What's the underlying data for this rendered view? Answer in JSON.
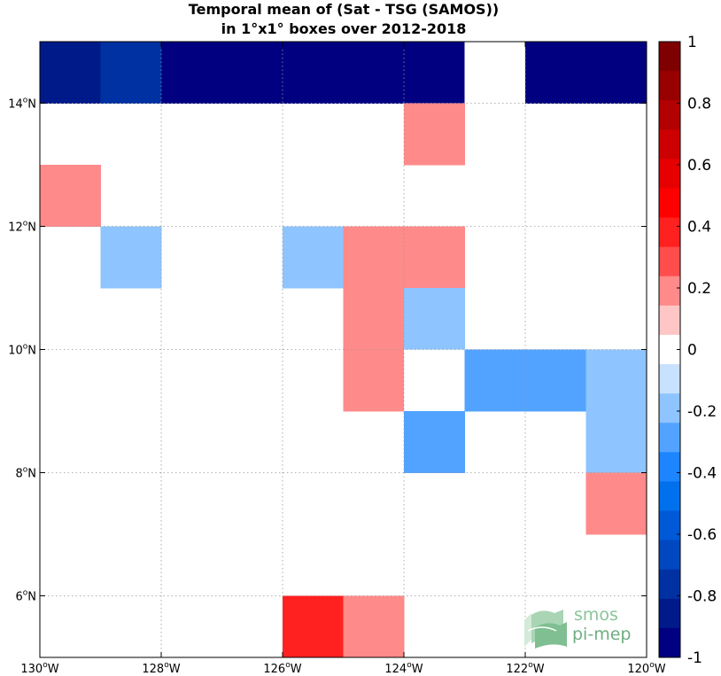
{
  "chart_data": {
    "type": "heatmap",
    "title": [
      "Temporal mean of (Sat - TSG (SAMOS))",
      "in 1°x1° boxes over 2012-2018"
    ],
    "xlabel": "",
    "ylabel": "",
    "xlim": [
      -130,
      -120
    ],
    "ylim": [
      5,
      15
    ],
    "grid": true,
    "x_ticks": [
      -130,
      -128,
      -126,
      -124,
      -122,
      -120
    ],
    "x_tick_labels": [
      {
        "deg": "130",
        "hem": "W"
      },
      {
        "deg": "128",
        "hem": "W"
      },
      {
        "deg": "126",
        "hem": "W"
      },
      {
        "deg": "124",
        "hem": "W"
      },
      {
        "deg": "122",
        "hem": "W"
      },
      {
        "deg": "120",
        "hem": "W"
      }
    ],
    "y_ticks": [
      6,
      8,
      10,
      12,
      14
    ],
    "y_tick_labels": [
      {
        "deg": "6",
        "hem": "N"
      },
      {
        "deg": "8",
        "hem": "N"
      },
      {
        "deg": "10",
        "hem": "N"
      },
      {
        "deg": "12",
        "hem": "N"
      },
      {
        "deg": "14",
        "hem": "N"
      }
    ],
    "cells": [
      {
        "lon": -130,
        "lat": 14,
        "value": -0.85
      },
      {
        "lon": -129,
        "lat": 14,
        "value": -0.75
      },
      {
        "lon": -128,
        "lat": 14,
        "value": -0.98
      },
      {
        "lon": -127,
        "lat": 14,
        "value": -0.98
      },
      {
        "lon": -126,
        "lat": 14,
        "value": -0.98
      },
      {
        "lon": -125,
        "lat": 14,
        "value": -0.98
      },
      {
        "lon": -124,
        "lat": 14,
        "value": -0.98
      },
      {
        "lon": -123,
        "lat": 14,
        "value": 0.0
      },
      {
        "lon": -122,
        "lat": 14,
        "value": -0.98
      },
      {
        "lon": -121,
        "lat": 14,
        "value": -0.98
      },
      {
        "lon": -124,
        "lat": 13,
        "value": 0.15
      },
      {
        "lon": -130,
        "lat": 12,
        "value": 0.15
      },
      {
        "lon": -129,
        "lat": 11,
        "value": -0.15
      },
      {
        "lon": -126,
        "lat": 11,
        "value": -0.15
      },
      {
        "lon": -125,
        "lat": 11,
        "value": 0.15
      },
      {
        "lon": -124,
        "lat": 11,
        "value": 0.15
      },
      {
        "lon": -125,
        "lat": 10,
        "value": 0.15
      },
      {
        "lon": -124,
        "lat": 10,
        "value": -0.15
      },
      {
        "lon": -125,
        "lat": 9,
        "value": 0.15
      },
      {
        "lon": -124,
        "lat": 9,
        "value": 0.0
      },
      {
        "lon": -123,
        "lat": 9,
        "value": -0.25
      },
      {
        "lon": -122,
        "lat": 9,
        "value": -0.25
      },
      {
        "lon": -121,
        "lat": 9,
        "value": -0.15
      },
      {
        "lon": -124,
        "lat": 8,
        "value": -0.25
      },
      {
        "lon": -121,
        "lat": 8,
        "value": -0.15
      },
      {
        "lon": -121,
        "lat": 7,
        "value": 0.15
      },
      {
        "lon": -126,
        "lat": 5,
        "value": 0.35
      },
      {
        "lon": -125,
        "lat": 5,
        "value": 0.15
      }
    ],
    "colorbar": {
      "range": [
        -1,
        1
      ],
      "ticks": [
        1,
        0.8,
        0.6,
        0.4,
        0.2,
        0,
        -0.2,
        -0.4,
        -0.6,
        -0.8,
        -1
      ],
      "tick_labels": [
        "1",
        "0.8",
        "0.6",
        "0.4",
        "0.2",
        "0",
        "-0.2",
        "-0.4",
        "-0.6",
        "-0.8",
        "-1"
      ],
      "colors_top_to_bottom": [
        "#7f0000",
        "#990000",
        "#b30000",
        "#cc0000",
        "#e60000",
        "#ff0000",
        "#ff2020",
        "#ff4d4d",
        "#ff8a8a",
        "#ffc6c6",
        "#ffffff",
        "#c7e1ff",
        "#8ec4ff",
        "#52a3ff",
        "#1c85ff",
        "#0070ec",
        "#0059d6",
        "#0047c0",
        "#0031a2",
        "#001a8a",
        "#000080"
      ]
    }
  },
  "logo": {
    "line1": "smos",
    "line2": "pi-mep"
  }
}
